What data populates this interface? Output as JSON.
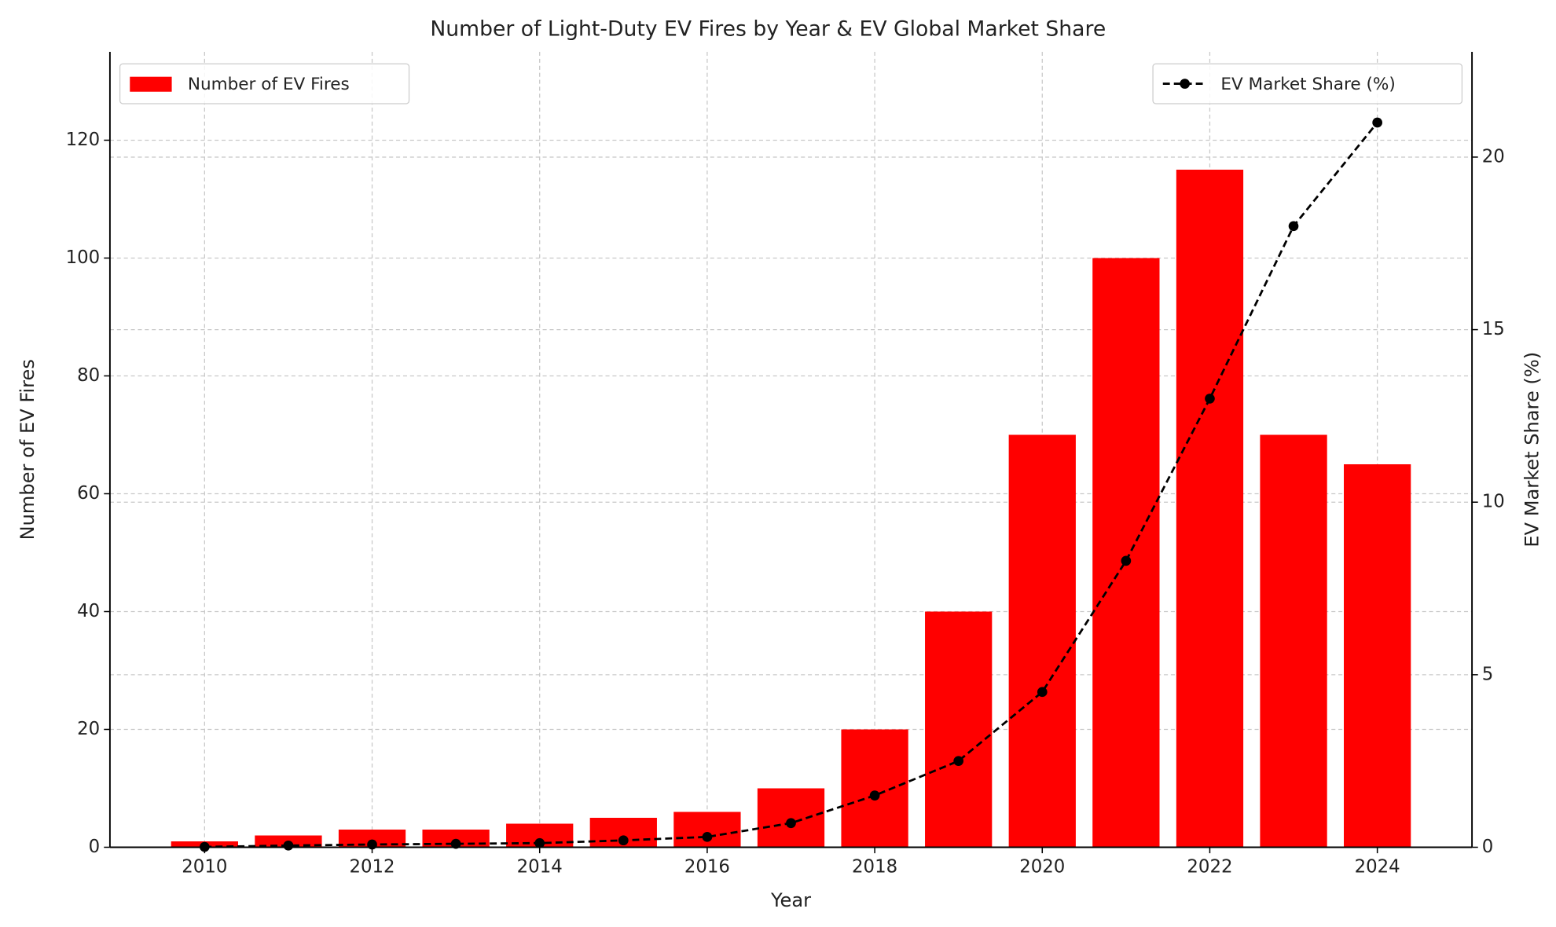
{
  "chart_data": {
    "type": "bar",
    "title": "Number of Light-Duty EV Fires by Year & EV Global Market Share",
    "x_label": "Year",
    "y_label": "Number of EV Fires",
    "y2_label": "EV Market Share (%)",
    "x": [
      2010,
      2011,
      2012,
      2013,
      2014,
      2015,
      2016,
      2017,
      2018,
      2019,
      2020,
      2021,
      2022,
      2023,
      2024
    ],
    "series": [
      {
        "name": "Number of EV Fires",
        "type": "bar",
        "color": "#ff0000",
        "legend": "upper left",
        "values": [
          1,
          2,
          3,
          3,
          4,
          5,
          6,
          10,
          20,
          40,
          70,
          100,
          115,
          70,
          65
        ]
      },
      {
        "name": "EV Market Share (%)",
        "type": "line",
        "axis": "y2",
        "color": "#000000",
        "legend": "upper right",
        "values": [
          0.01,
          0.05,
          0.08,
          0.1,
          0.12,
          0.2,
          0.3,
          0.7,
          1.5,
          2.5,
          4.5,
          8.3,
          13,
          18,
          21
        ]
      }
    ],
    "xlim": [
      2008.87,
      2025.13
    ],
    "xticks": [
      2010,
      2012,
      2014,
      2016,
      2018,
      2020,
      2022,
      2024
    ],
    "ylim": [
      0,
      135
    ],
    "yticks": [
      0,
      20,
      40,
      60,
      80,
      100,
      120
    ],
    "y2lim": [
      0,
      23.05
    ],
    "y2ticks": [
      0,
      5,
      10,
      15,
      20
    ],
    "grid": true
  }
}
